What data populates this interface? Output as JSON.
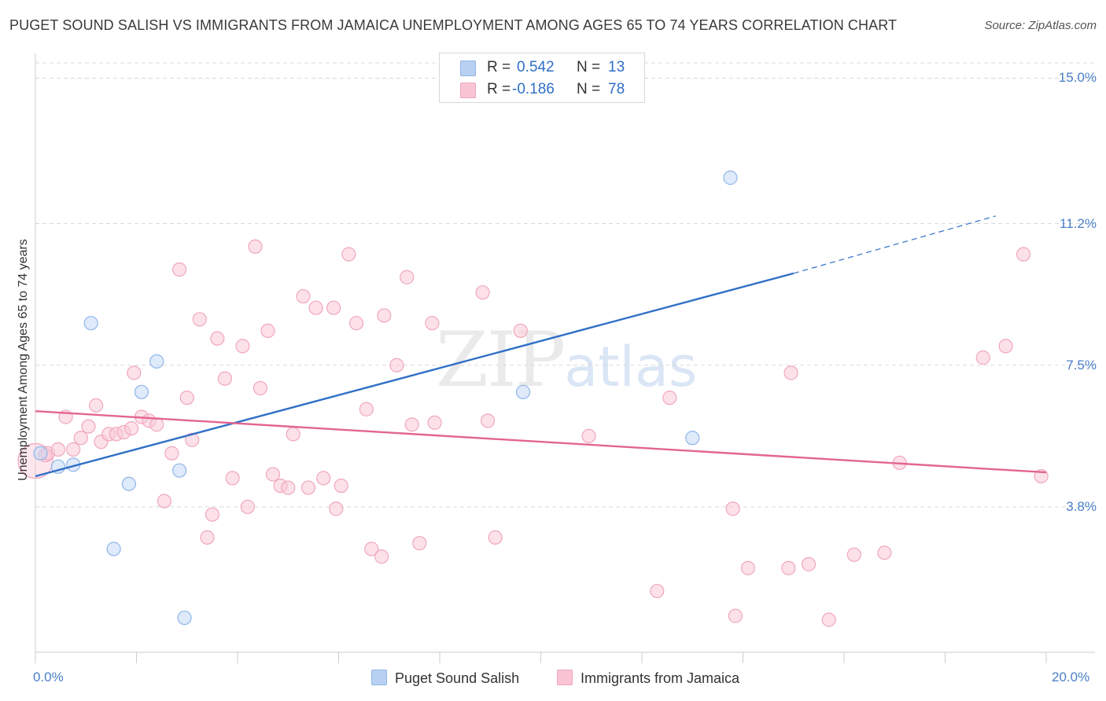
{
  "title": "PUGET SOUND SALISH VS IMMIGRANTS FROM JAMAICA UNEMPLOYMENT AMONG AGES 65 TO 74 YEARS CORRELATION CHART",
  "source": "Source: ZipAtlas.com",
  "watermark": {
    "zip": "ZIP",
    "atlas": "atlas"
  },
  "legend": {
    "rows": [
      {
        "r_label": "R =",
        "r_value": "0.542",
        "n_label": "N =",
        "n_value": "13",
        "color": "#b8d0f2"
      },
      {
        "r_label": "R =",
        "r_value": "-0.186",
        "n_label": "N =",
        "n_value": "78",
        "color": "#f9c4d3"
      }
    ]
  },
  "bottom_legend": [
    "Puget Sound Salish",
    "Immigrants from Jamaica"
  ],
  "chart_data": {
    "type": "scatter",
    "title": "PUGET SOUND SALISH VS IMMIGRANTS FROM JAMAICA UNEMPLOYMENT AMONG AGES 65 TO 74 YEARS CORRELATION CHART",
    "xlabel": "",
    "ylabel": "Unemployment Among Ages 65 to 74 years",
    "xlim": [
      0,
      20
    ],
    "ylim": [
      0,
      15.4
    ],
    "x_tick_labels": [
      "0.0%",
      "20.0%"
    ],
    "y_ticks": [
      3.8,
      7.5,
      11.2,
      15.0
    ],
    "y_tick_labels": [
      "3.8%",
      "7.5%",
      "11.2%",
      "15.0%"
    ],
    "grid": true,
    "series": [
      {
        "name": "Puget Sound Salish",
        "color": "#8fb6ea",
        "fill": "#c5d9f5",
        "trend_color": "#2f6fc7",
        "trend": {
          "x0": 0.0,
          "y0": 4.6,
          "x1": 15.0,
          "y1": 9.9,
          "dash_to_x": 19.0,
          "dash_to_y": 11.4
        },
        "points": [
          [
            0.1,
            5.2
          ],
          [
            0.75,
            4.9
          ],
          [
            0.45,
            4.85
          ],
          [
            1.1,
            8.6
          ],
          [
            2.4,
            7.6
          ],
          [
            2.1,
            6.8
          ],
          [
            2.85,
            4.75
          ],
          [
            1.85,
            4.4
          ],
          [
            1.55,
            2.7
          ],
          [
            2.95,
            0.9
          ],
          [
            9.65,
            6.8
          ],
          [
            13.0,
            5.6
          ],
          [
            13.75,
            12.4
          ]
        ]
      },
      {
        "name": "Immigrants from Jamaica",
        "color": "#f0a7bc",
        "fill": "#f9c9d6",
        "trend_color": "#e36591",
        "trend": {
          "x0": 0.0,
          "y0": 6.3,
          "x1": 20.0,
          "y1": 4.7
        },
        "points": [
          [
            0.0,
            5.0
          ],
          [
            0.2,
            5.15
          ],
          [
            0.25,
            5.2
          ],
          [
            0.45,
            5.3
          ],
          [
            0.6,
            6.15
          ],
          [
            0.75,
            5.3
          ],
          [
            0.9,
            5.6
          ],
          [
            1.05,
            5.9
          ],
          [
            1.2,
            6.45
          ],
          [
            1.3,
            5.5
          ],
          [
            1.45,
            5.7
          ],
          [
            1.6,
            5.7
          ],
          [
            1.75,
            5.75
          ],
          [
            1.9,
            5.85
          ],
          [
            1.95,
            7.3
          ],
          [
            2.1,
            6.15
          ],
          [
            2.25,
            6.05
          ],
          [
            2.4,
            5.95
          ],
          [
            2.55,
            3.95
          ],
          [
            2.7,
            5.2
          ],
          [
            2.85,
            10.0
          ],
          [
            3.0,
            6.65
          ],
          [
            3.1,
            5.55
          ],
          [
            3.25,
            8.7
          ],
          [
            3.4,
            3.0
          ],
          [
            3.5,
            3.6
          ],
          [
            3.6,
            8.2
          ],
          [
            3.75,
            7.15
          ],
          [
            3.9,
            4.55
          ],
          [
            4.1,
            8.0
          ],
          [
            4.2,
            3.8
          ],
          [
            4.35,
            10.6
          ],
          [
            4.45,
            6.9
          ],
          [
            4.6,
            8.4
          ],
          [
            4.7,
            4.65
          ],
          [
            4.85,
            4.35
          ],
          [
            5.0,
            4.3
          ],
          [
            5.1,
            5.7
          ],
          [
            5.3,
            9.3
          ],
          [
            5.4,
            4.3
          ],
          [
            5.55,
            9.0
          ],
          [
            5.7,
            4.55
          ],
          [
            5.9,
            9.0
          ],
          [
            5.95,
            3.75
          ],
          [
            6.05,
            4.35
          ],
          [
            6.2,
            10.4
          ],
          [
            6.35,
            8.6
          ],
          [
            6.55,
            6.35
          ],
          [
            6.65,
            2.7
          ],
          [
            6.85,
            2.5
          ],
          [
            6.9,
            8.8
          ],
          [
            7.15,
            7.5
          ],
          [
            7.35,
            9.8
          ],
          [
            7.45,
            5.95
          ],
          [
            7.6,
            2.85
          ],
          [
            7.85,
            8.6
          ],
          [
            7.9,
            6.0
          ],
          [
            8.85,
            9.4
          ],
          [
            8.95,
            6.05
          ],
          [
            9.1,
            3.0
          ],
          [
            9.6,
            8.4
          ],
          [
            10.95,
            5.65
          ],
          [
            12.3,
            1.6
          ],
          [
            12.55,
            6.65
          ],
          [
            13.8,
            3.75
          ],
          [
            13.85,
            0.95
          ],
          [
            14.1,
            2.2
          ],
          [
            14.9,
            2.2
          ],
          [
            14.95,
            7.3
          ],
          [
            15.3,
            2.3
          ],
          [
            15.7,
            0.85
          ],
          [
            16.2,
            2.55
          ],
          [
            16.8,
            2.6
          ],
          [
            17.1,
            4.95
          ],
          [
            18.75,
            7.7
          ],
          [
            19.2,
            8.0
          ],
          [
            19.55,
            10.4
          ],
          [
            19.9,
            4.6
          ]
        ]
      }
    ]
  }
}
